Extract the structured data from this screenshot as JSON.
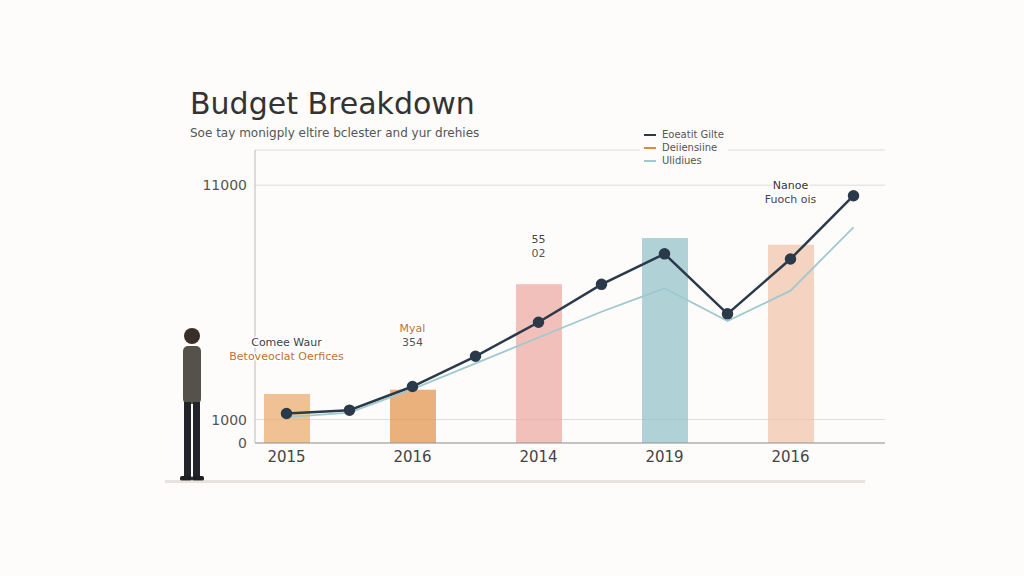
{
  "chart_data": {
    "type": "bar",
    "title": "Budget Breakdown",
    "subtitle": "Soe tay monigply eltire bclester and yur drehies",
    "categories": [
      "2015",
      null,
      "2016",
      null,
      "2014",
      null,
      "2019",
      null,
      "2016",
      null
    ],
    "series": [
      {
        "name": "Eoeatit Gilte",
        "type": "line",
        "color": "#2b3a4a",
        "marker": "circle",
        "line_style": "solid",
        "values": [
          1260,
          1400,
          2410,
          3700,
          5150,
          6770,
          8070,
          5510,
          7850,
          10550
        ]
      },
      {
        "name": "Deiiensiine",
        "type": "bar",
        "color": "#e0893a",
        "colors": [
          "#eaa867",
          null,
          "#e39146",
          null,
          "#eba7a0",
          null,
          "#8fc0c8",
          null,
          "#f0c2a6",
          null
        ],
        "values": [
          2090,
          null,
          2270,
          null,
          6770,
          null,
          8750,
          null,
          8460,
          null
        ]
      },
      {
        "name": "Ulidiues",
        "type": "line",
        "color": "#9fc9cf",
        "marker": "none",
        "line_style": "solid",
        "values": [
          1100,
          1300,
          2300,
          3400,
          4500,
          5600,
          6600,
          5200,
          6500,
          9200
        ]
      }
    ],
    "ylim": [
      0,
      12500
    ],
    "yticks": [
      0,
      1000,
      11000
    ],
    "grid": true,
    "legend": "top-right",
    "annotations": [
      {
        "x": 0,
        "y": 3300,
        "lines": [
          "Comee Waur",
          "Betoveoclat Oerfices"
        ]
      },
      {
        "x": 2,
        "y": 3890,
        "lines": [
          "Myal",
          "354"
        ]
      },
      {
        "x": 4,
        "y": 7670,
        "lines": [
          "55",
          "02"
        ]
      },
      {
        "x": 8,
        "y": 10000,
        "lines": [
          "Nanoe",
          "Fuoch ois"
        ]
      }
    ]
  }
}
